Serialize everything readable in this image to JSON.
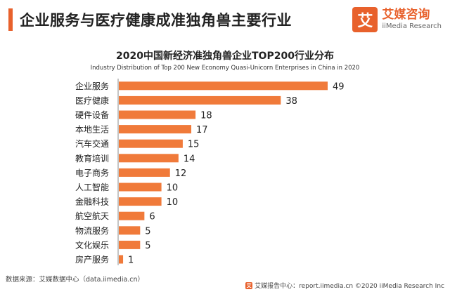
{
  "header": {
    "title": "企业服务与医疗健康成准独角兽主要行业"
  },
  "logo": {
    "mark": "艾",
    "name_cn": "艾媒咨询",
    "name_en": "iiMedia Research",
    "icon": "iimedia-logo-icon"
  },
  "footer": {
    "source": "数据来源：艾媒数据中心（data.iimedia.cn）",
    "credit_mark": "艾",
    "credit": "艾媒报告中心：report.iimedia.cn  ©2020  iiMedia Research  Inc"
  },
  "colors": {
    "accent": "#e8612c",
    "bar": "#f07a3a",
    "text": "#222222"
  },
  "chart_data": {
    "type": "bar",
    "orientation": "horizontal",
    "title": "2020中国新经济准独角兽企业TOP200行业分布",
    "subtitle": "Industry Distribution of Top 200 New Economy Quasi-Unicorn Enterprises in China in 2020",
    "categories": [
      "企业服务",
      "医疗健康",
      "硬件设备",
      "本地生活",
      "汽车交通",
      "教育培训",
      "电子商务",
      "人工智能",
      "金融科技",
      "航空航天",
      "物流服务",
      "文化娱乐",
      "房产服务"
    ],
    "values": [
      49,
      38,
      18,
      17,
      15,
      14,
      12,
      10,
      10,
      6,
      5,
      5,
      1
    ],
    "xlim": [
      0,
      49
    ],
    "grid": false,
    "legend": "none",
    "data_labels": true
  }
}
